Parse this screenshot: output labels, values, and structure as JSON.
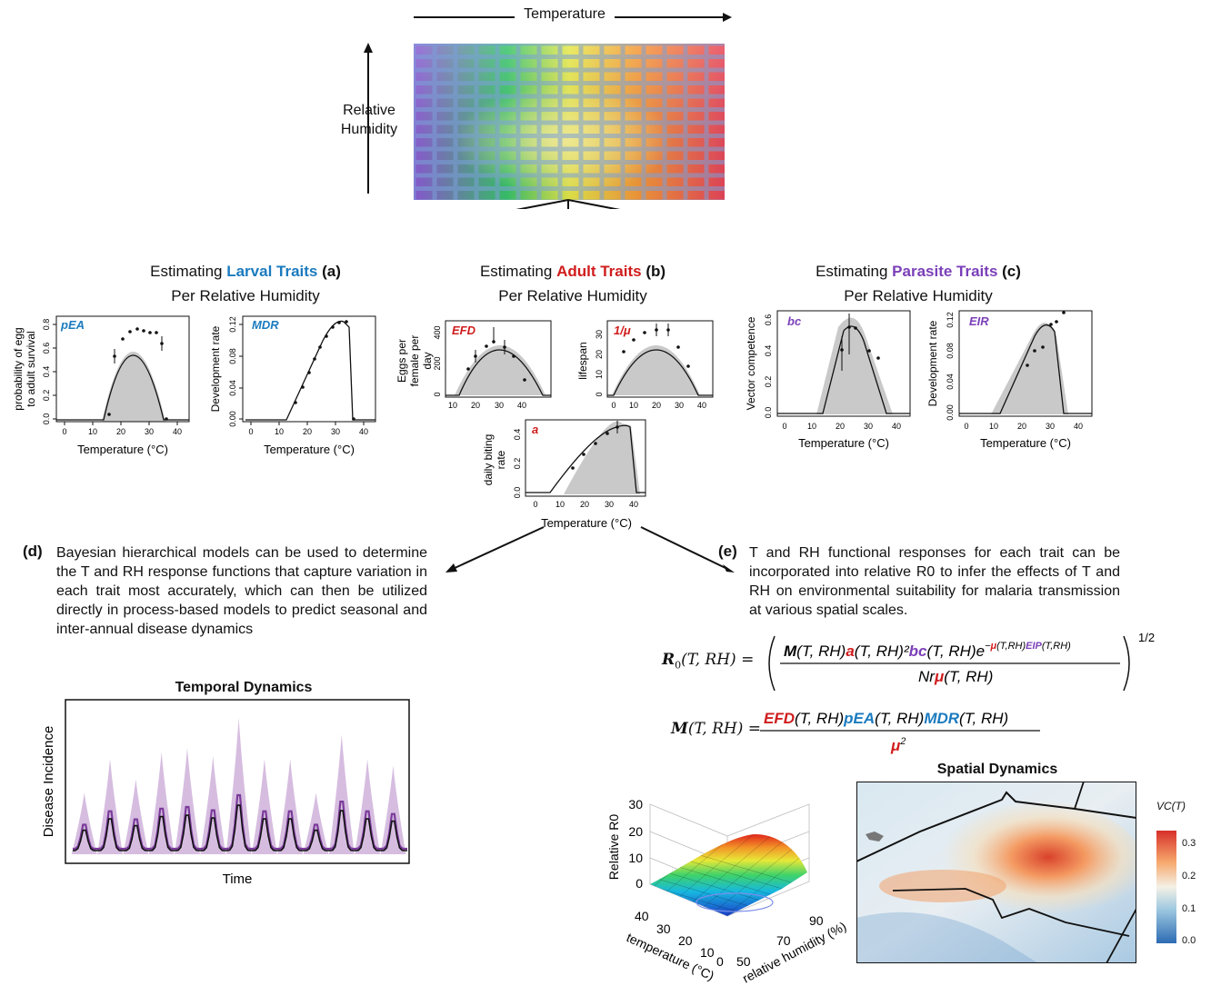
{
  "grid": {
    "temperature_label": "Temperature",
    "humidity_label_1": "Relative",
    "humidity_label_2": "Humidity"
  },
  "headers": {
    "larval": {
      "pre": "Estimating ",
      "name": "Larval Traits",
      "letter": "(a)",
      "line2": "Per Relative Humidity",
      "color": "#1b7bbf"
    },
    "adult": {
      "pre": "Estimating ",
      "name": "Adult Traits",
      "letter": "(b)",
      "line2": "Per Relative Humidity",
      "color": "#d01c1c"
    },
    "parasite": {
      "pre": "Estimating ",
      "name": "Parasite Traits",
      "letter": "(c)",
      "line2": "Per Relative Humidity",
      "color": "#7b3fb8"
    }
  },
  "plots": {
    "pEA": {
      "tag": "pEA",
      "ylabel_1": "probability of egg",
      "ylabel_2": "to adult survival",
      "yticks": [
        "0.0",
        "0.2",
        "0.4",
        "0.6",
        "0.8"
      ],
      "xticks": [
        "0",
        "10",
        "20",
        "30",
        "40"
      ],
      "xlabel": "Temperature (°C)"
    },
    "MDR": {
      "tag": "MDR",
      "ylabel": "Development rate",
      "yticks": [
        "0.00",
        "0.04",
        "0.08",
        "0.12"
      ],
      "xticks": [
        "0",
        "10",
        "20",
        "30",
        "40"
      ],
      "xlabel": "Temperature (°C)"
    },
    "EFD": {
      "tag": "EFD",
      "ylabel_1": "Eggs per",
      "ylabel_2": "female per",
      "ylabel_3": "day",
      "yticks": [
        "0",
        "200",
        "400"
      ],
      "xticks": [
        "10",
        "20",
        "30",
        "40"
      ]
    },
    "mu": {
      "tag": "1/μ",
      "ylabel": "lifespan",
      "yticks": [
        "0",
        "10",
        "20",
        "30"
      ],
      "xticks": [
        "0",
        "10",
        "20",
        "30",
        "40"
      ]
    },
    "a": {
      "tag": "a",
      "ylabel_1": "daily biting",
      "ylabel_2": "rate",
      "yticks": [
        "0.0",
        "0.2",
        "0.4"
      ],
      "xticks": [
        "0",
        "10",
        "20",
        "30",
        "40"
      ],
      "xlabel": "Temperature (°C)"
    },
    "bc": {
      "tag": "bc",
      "ylabel": "Vector competence",
      "yticks": [
        "0.0",
        "0.2",
        "0.4",
        "0.6"
      ],
      "xticks": [
        "0",
        "10",
        "20",
        "30",
        "40"
      ],
      "xlabel": "Temperature (°C)"
    },
    "EIR": {
      "tag": "EIR",
      "ylabel": "Development rate",
      "yticks": [
        "0.00",
        "0.04",
        "0.08",
        "0.12"
      ],
      "xticks": [
        "0",
        "10",
        "20",
        "30",
        "40"
      ],
      "xlabel": "Temperature (°C)"
    }
  },
  "section_d": {
    "letter": "(d)",
    "text": "Bayesian hierarchical models can be used to determine the T and RH response functions that capture variation in each trait most accurately, which can then be utilized directly in process-based models to predict seasonal and inter-annual disease dynamics"
  },
  "section_e": {
    "letter": "(e)",
    "text": "T and RH functional responses for each trait can be incorporated into relative R0 to infer the effects of T and RH on environmental suitability for malaria transmission at various spatial scales."
  },
  "temporal": {
    "title": "Temporal Dynamics",
    "ylabel": "Disease Incidence",
    "xlabel": "Time"
  },
  "surface": {
    "zlabel": "Relative R0",
    "zticks": [
      "0",
      "10",
      "20",
      "30"
    ],
    "temp_ticks": [
      "40",
      "30",
      "20",
      "10",
      "0"
    ],
    "temp_label": "temperature (°C)",
    "rh_ticks": [
      "50",
      "70",
      "90"
    ],
    "rh_label": "relative humidity (%)"
  },
  "spatial": {
    "title": "Spatial Dynamics",
    "legend_title": "VC(T)",
    "legend_ticks": [
      "0.3",
      "0.2",
      "0.1",
      "0.0"
    ]
  }
}
